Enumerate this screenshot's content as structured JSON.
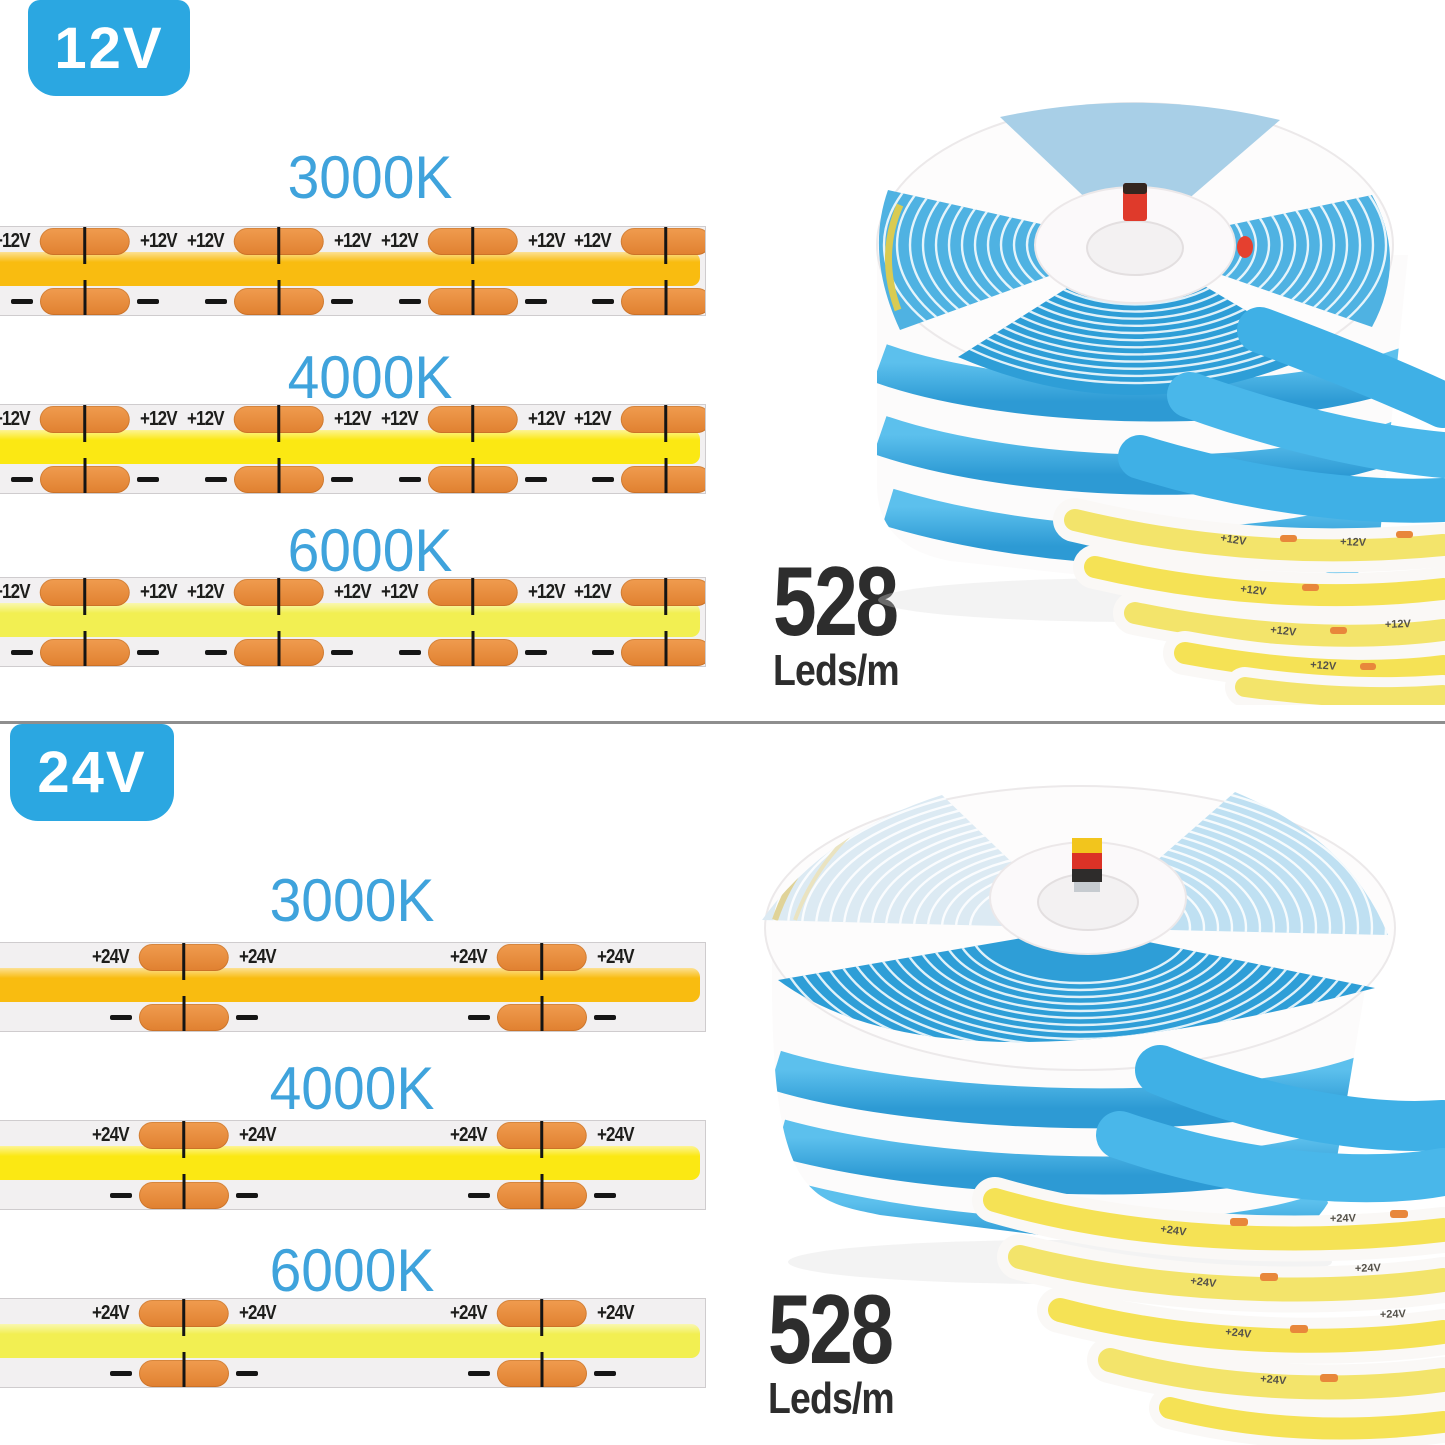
{
  "sections": [
    {
      "badge": "12V",
      "variants": [
        {
          "label": "3000K",
          "band_color": "#F9BC10"
        },
        {
          "label": "4000K",
          "band_color": "#FBE813"
        },
        {
          "label": "6000K",
          "band_color": "#F2EF52"
        }
      ],
      "strip": {
        "positive_marking": "+12V",
        "negative_marking": "-",
        "pad_groups": 4
      },
      "density": {
        "value": "528",
        "unit": "Leds/m"
      },
      "photo": {
        "cascade_marking": "+12V"
      }
    },
    {
      "badge": "24V",
      "variants": [
        {
          "label": "3000K",
          "band_color": "#F9BC10"
        },
        {
          "label": "4000K",
          "band_color": "#FBE813"
        },
        {
          "label": "6000K",
          "band_color": "#F2EF52"
        }
      ],
      "strip": {
        "positive_marking": "+24V",
        "negative_marking": "-",
        "pad_groups": 2
      },
      "density": {
        "value": "528",
        "unit": "Leds/m"
      },
      "photo": {
        "cascade_marking": "+24V"
      }
    }
  ],
  "colors": {
    "badge_blue": "#2BA7E1",
    "label_blue": "#3FA3DC",
    "pad_orange": "#E8873B",
    "marking_black": "#1D1D1B",
    "count_black": "#2D2D2D",
    "divider_gray": "#8E8E8E",
    "strip_pcb": "#F2F0F1",
    "reel_strip_back_blue": "#3FB0E6",
    "cascade_face_yellow": "#F3E46B"
  }
}
